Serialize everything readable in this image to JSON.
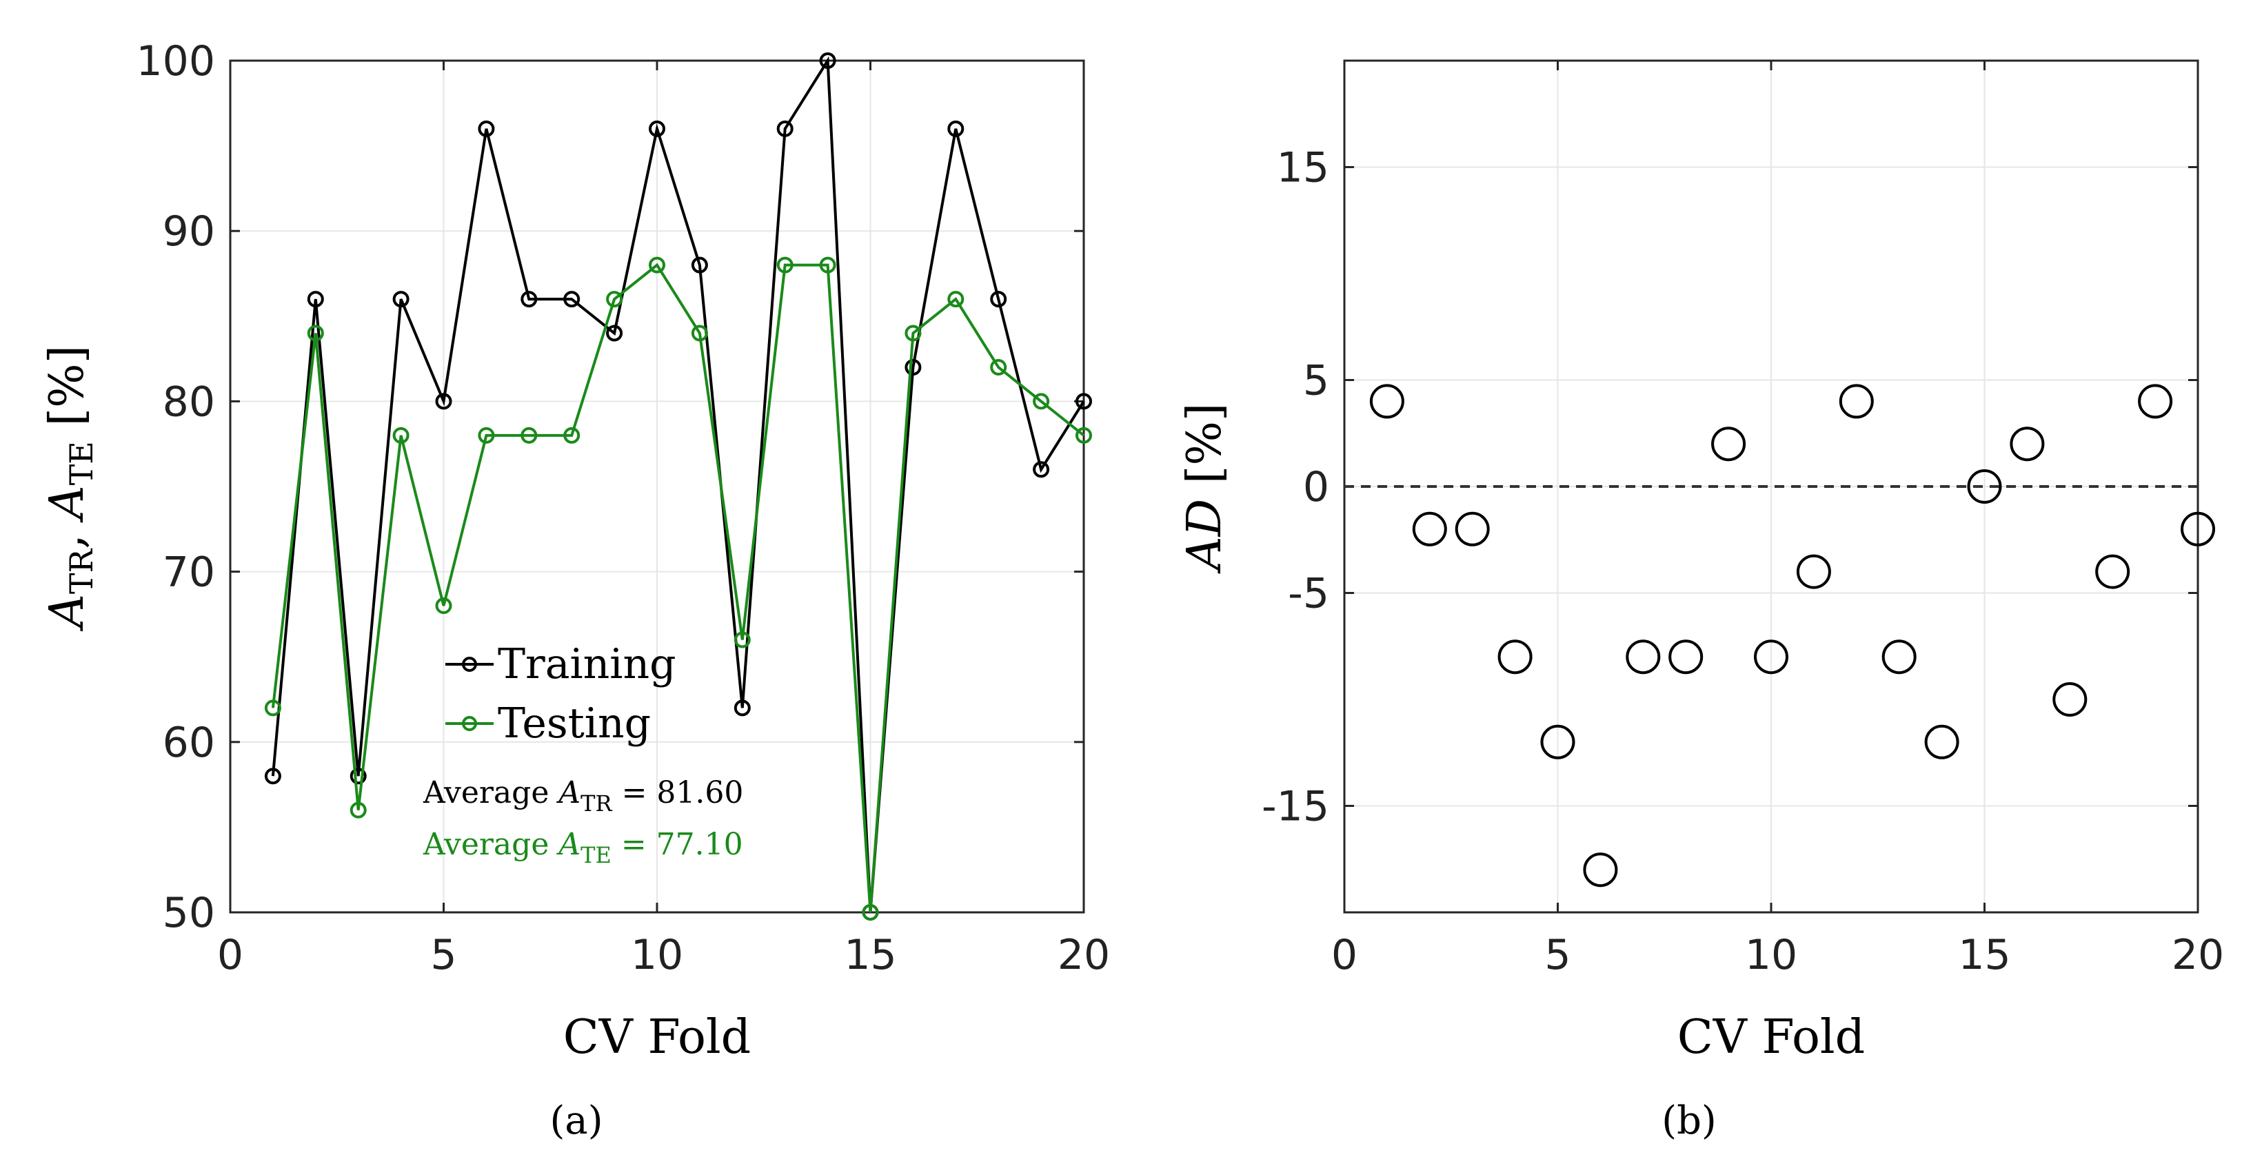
{
  "chart_data": [
    {
      "type": "line",
      "panel_label": "(a)",
      "xlabel": "CV Fold",
      "ylabel": {
        "main": "A",
        "sub1": "TR",
        "sep": ", ",
        "sub2": "TE",
        "unit": " [%]"
      },
      "xlim": [
        0,
        20
      ],
      "ylim": [
        50,
        100
      ],
      "xticks": [
        0,
        5,
        10,
        15,
        20
      ],
      "yticks": [
        50,
        60,
        70,
        80,
        90,
        100
      ],
      "grid": true,
      "legend_position": "center-left",
      "x": [
        1,
        2,
        3,
        4,
        5,
        6,
        7,
        8,
        9,
        10,
        11,
        12,
        13,
        14,
        15,
        16,
        17,
        18,
        19,
        20
      ],
      "series": [
        {
          "name": "Training",
          "color": "#000000",
          "values": [
            58,
            86,
            58,
            86,
            80,
            96,
            86,
            86,
            84,
            96,
            88,
            62,
            96,
            100,
            50,
            82,
            96,
            86,
            76,
            80
          ]
        },
        {
          "name": "Testing",
          "color": "#1a8a1a",
          "values": [
            62,
            84,
            56,
            78,
            68,
            78,
            78,
            78,
            86,
            88,
            84,
            66,
            88,
            88,
            50,
            84,
            86,
            82,
            80,
            78
          ]
        }
      ],
      "annotations": [
        {
          "prefix": "Average ",
          "var": "A",
          "sub": "TR",
          "value": " = 81.60",
          "color": "#000000"
        },
        {
          "prefix": "Average ",
          "var": "A",
          "sub": "TE",
          "value": " = 77.10",
          "color": "#1a8a1a"
        }
      ]
    },
    {
      "type": "scatter",
      "panel_label": "(b)",
      "xlabel": "CV Fold",
      "ylabel": {
        "main": "AD",
        "unit": " [%]"
      },
      "xlim": [
        0,
        20
      ],
      "ylim": [
        -20,
        20
      ],
      "xticks": [
        0,
        5,
        10,
        15,
        20
      ],
      "yticks": [
        -15,
        -5,
        0,
        5,
        15
      ],
      "grid": true,
      "reference_line": 0,
      "x": [
        1,
        2,
        3,
        4,
        5,
        6,
        7,
        8,
        9,
        10,
        11,
        12,
        13,
        14,
        15,
        16,
        17,
        18,
        19,
        20
      ],
      "values": [
        4,
        -2,
        -2,
        -8,
        -12,
        -18,
        -8,
        -8,
        2,
        -8,
        -4,
        4,
        -8,
        -12,
        0,
        2,
        -10,
        -4,
        4,
        -2
      ],
      "color": "#000000"
    }
  ]
}
